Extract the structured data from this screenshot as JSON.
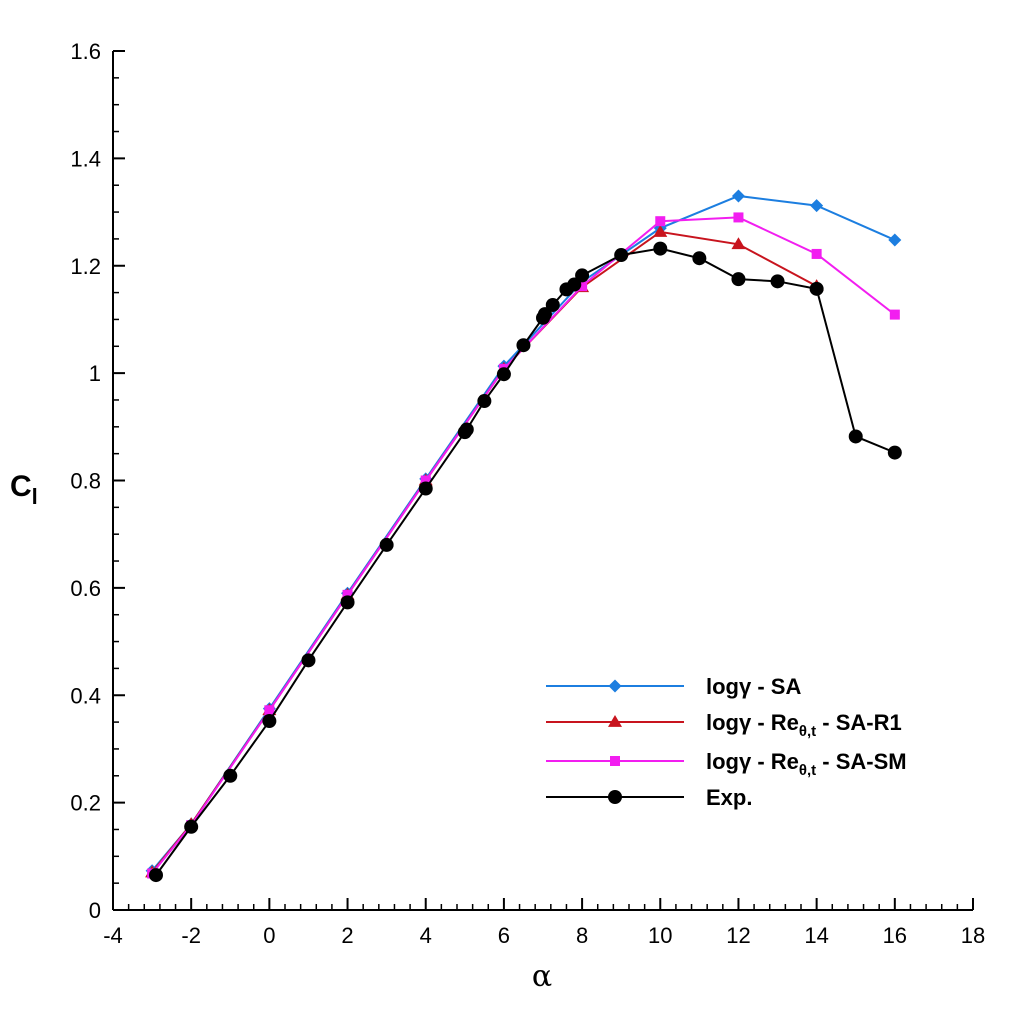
{
  "chart_data": {
    "type": "line",
    "title": "",
    "xlabel": "α",
    "ylabel": "C",
    "ylabel_sub": "l",
    "xlim": [
      -4,
      18
    ],
    "ylim": [
      0,
      1.6
    ],
    "x_ticks": [
      -4,
      -2,
      0,
      2,
      4,
      6,
      8,
      10,
      12,
      14,
      16,
      18
    ],
    "y_ticks": [
      0,
      0.2,
      0.4,
      0.6,
      0.8,
      1,
      1.2,
      1.4,
      1.6
    ],
    "x_tick_labels": [
      "-4",
      "-2",
      "0",
      "2",
      "4",
      "6",
      "8",
      "10",
      "12",
      "14",
      "16",
      "18"
    ],
    "y_tick_labels": [
      "0",
      "0.2",
      "0.4",
      "0.6",
      "0.8",
      "1",
      "1.2",
      "1.4",
      "1.6"
    ],
    "grid": false,
    "legend_position": "bottom-right",
    "series": [
      {
        "name": "logγ - SA",
        "label_main": "logγ - SA",
        "label_sub": "",
        "label_tail": "",
        "color": "#1c7ee0",
        "marker": "diamond",
        "x": [
          -3,
          -2,
          0,
          2,
          4,
          6,
          8,
          10,
          12,
          14,
          16
        ],
        "y": [
          0.073,
          0.16,
          0.375,
          0.59,
          0.803,
          1.013,
          1.17,
          1.27,
          1.33,
          1.312,
          1.248
        ]
      },
      {
        "name": "logγ - Reθ,t - SA-R1",
        "label_main": "logγ - Re",
        "label_sub": "θ,t",
        "label_tail": " - SA-R1",
        "color": "#c8141e",
        "marker": "triangle",
        "x": [
          -3,
          -2,
          0,
          2,
          4,
          6,
          8,
          10,
          12,
          14
        ],
        "y": [
          0.07,
          0.16,
          0.372,
          0.587,
          0.8,
          1.008,
          1.16,
          1.263,
          1.24,
          1.162
        ]
      },
      {
        "name": "logγ - Reθ,t - SA-SM",
        "label_main": "logγ - Re",
        "label_sub": "θ,t",
        "label_tail": " - SA-SM",
        "color": "#f21ef0",
        "marker": "square",
        "x": [
          -3,
          -2,
          0,
          2,
          4,
          6,
          8,
          10,
          12,
          14,
          16
        ],
        "y": [
          0.068,
          0.158,
          0.372,
          0.587,
          0.8,
          1.008,
          1.162,
          1.283,
          1.29,
          1.222,
          1.109
        ]
      },
      {
        "name": "Exp.",
        "label_main": "Exp.",
        "label_sub": "",
        "label_tail": "",
        "color": "#000000",
        "marker": "circle",
        "x": [
          -2.9,
          -2,
          -1,
          0,
          1,
          2,
          3,
          4,
          5,
          5.05,
          5.5,
          6,
          6.5,
          7,
          7.05,
          7.25,
          7.6,
          7.8,
          8,
          9,
          10,
          11,
          12,
          13,
          14,
          15,
          16
        ],
        "y": [
          0.065,
          0.155,
          0.25,
          0.352,
          0.465,
          0.573,
          0.68,
          0.785,
          0.89,
          0.895,
          0.948,
          0.998,
          1.052,
          1.103,
          1.11,
          1.127,
          1.156,
          1.165,
          1.182,
          1.22,
          1.232,
          1.214,
          1.175,
          1.171,
          1.157,
          0.882,
          0.852
        ]
      }
    ]
  }
}
